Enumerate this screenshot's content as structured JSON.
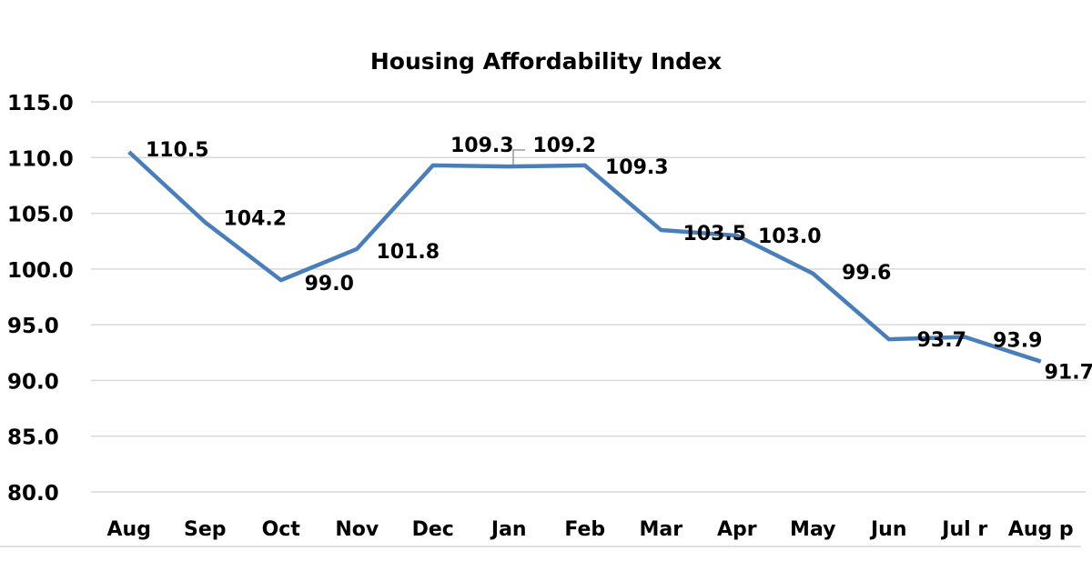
{
  "chart_data": {
    "type": "line",
    "title": "Housing Affordability Index",
    "xlabel": "",
    "ylabel": "",
    "categories": [
      "Aug",
      "Sep",
      "Oct",
      "Nov",
      "Dec",
      "Jan",
      "Feb",
      "Mar",
      "Apr",
      "May",
      "Jun",
      "Jul r",
      "Aug p"
    ],
    "series": [
      {
        "values": [
          110.5,
          104.2,
          99.0,
          101.8,
          109.3,
          109.2,
          109.3,
          103.5,
          103.0,
          99.6,
          93.7,
          93.9,
          91.7
        ],
        "labels": [
          "110.5",
          "104.2",
          "99.0",
          "101.8",
          "109.3",
          "109.2",
          "109.3",
          "103.5",
          "103.0",
          "99.6",
          "93.7",
          "93.9",
          "91.7"
        ]
      }
    ],
    "ylim": [
      80,
      115
    ],
    "yticks": [
      "80.0",
      "85.0",
      "90.0",
      "95.0",
      "100.0",
      "105.0",
      "110.0",
      "115.0"
    ],
    "grid": true,
    "legend": "none",
    "colors": {
      "line": "#4a7ebb",
      "grid": "#d9d9d9"
    }
  }
}
